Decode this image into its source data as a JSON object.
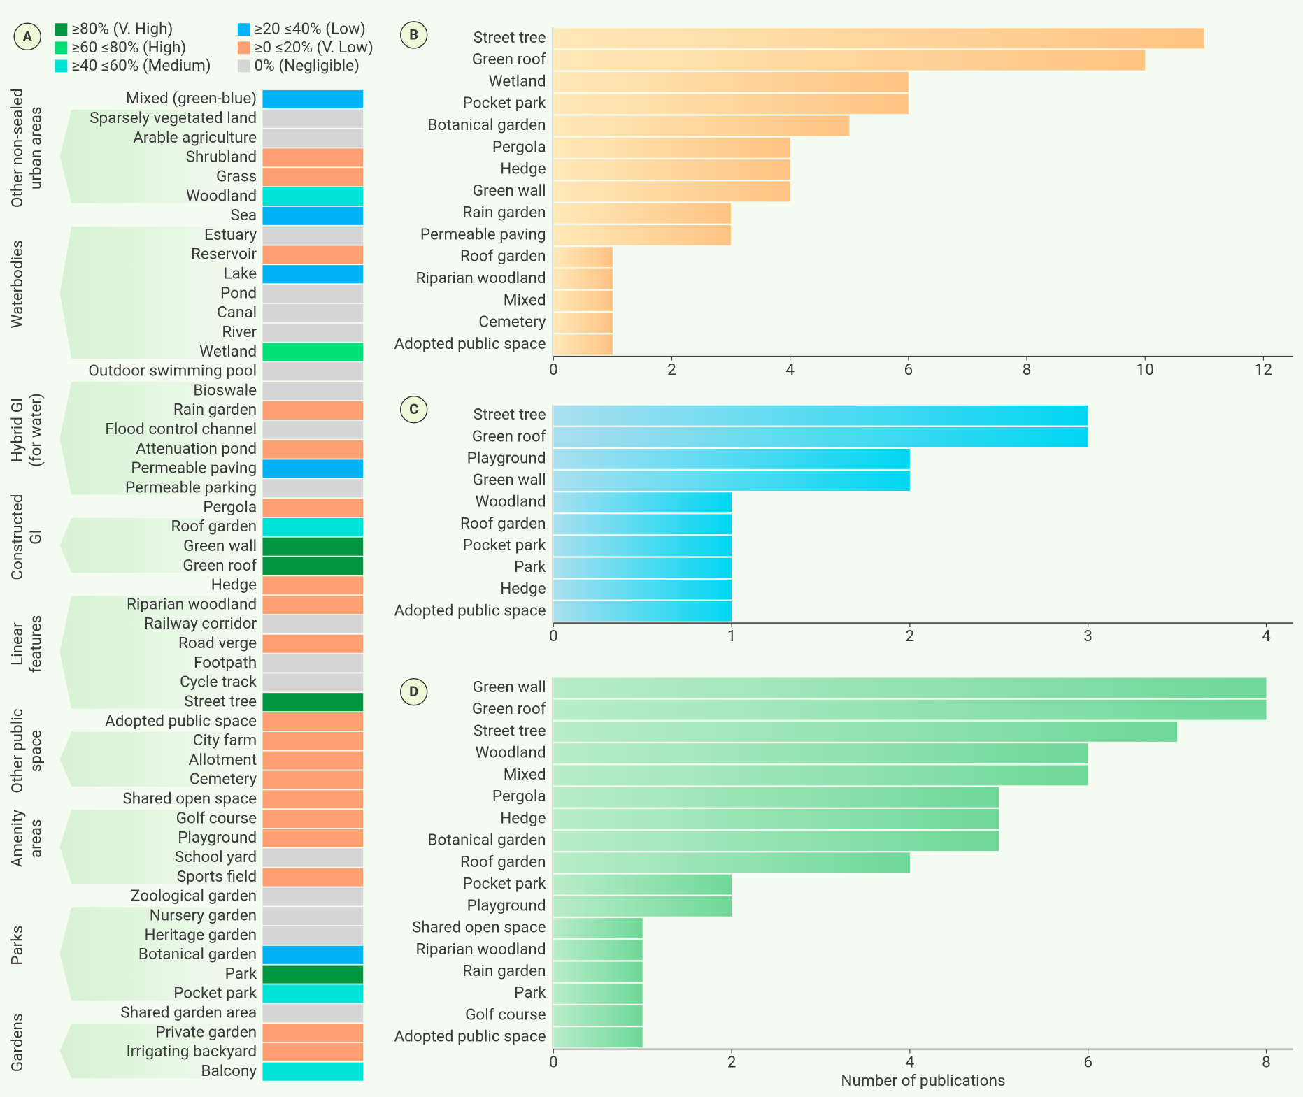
{
  "chart_data": [
    {
      "type": "class-strip",
      "panel": "A",
      "legend": [
        {
          "label": "≥80% (V. High)",
          "color": "#00963f"
        },
        {
          "label": "≥60 ≤80% (High)",
          "color": "#00e076"
        },
        {
          "label": "≥40 ≤60% (Medium)",
          "color": "#00e3d8"
        },
        {
          "label": "≥20 ≤40% (Low)",
          "color": "#00b2f6"
        },
        {
          "label": "≥0 ≤20% (V. Low)",
          "color": "#ffa072"
        },
        {
          "label": "0% (Negligible)",
          "color": "#d6d6d6"
        }
      ],
      "groups": [
        {
          "name": [
            "Other non-sealed",
            "urban areas"
          ],
          "items": [
            {
              "label": "Mixed (green-blue)",
              "class": 3
            },
            {
              "label": "Sparsely vegetated land",
              "class": 5
            },
            {
              "label": "Arable agriculture",
              "class": 5
            },
            {
              "label": "Shrubland",
              "class": 4
            },
            {
              "label": "Grass",
              "class": 4
            },
            {
              "label": "Woodland",
              "class": 2
            }
          ]
        },
        {
          "name": [
            "Waterbodies"
          ],
          "items": [
            {
              "label": "Sea",
              "class": 3
            },
            {
              "label": "Estuary",
              "class": 5
            },
            {
              "label": "Reservoir",
              "class": 4
            },
            {
              "label": "Lake",
              "class": 3
            },
            {
              "label": "Pond",
              "class": 5
            },
            {
              "label": "Canal",
              "class": 5
            },
            {
              "label": "River",
              "class": 5
            },
            {
              "label": "Wetland",
              "class": 1
            }
          ]
        },
        {
          "name": [
            "Hybrid GI",
            "(for water)"
          ],
          "items": [
            {
              "label": "Outdoor swimming pool",
              "class": 5
            },
            {
              "label": "Bioswale",
              "class": 5
            },
            {
              "label": "Rain garden",
              "class": 4
            },
            {
              "label": "Flood control channel",
              "class": 5
            },
            {
              "label": "Attenuation pond",
              "class": 4
            },
            {
              "label": "Permeable paving",
              "class": 3
            },
            {
              "label": "Permeable parking",
              "class": 5
            }
          ]
        },
        {
          "name": [
            "Constructed",
            "GI"
          ],
          "items": [
            {
              "label": "Pergola",
              "class": 4
            },
            {
              "label": "Roof garden",
              "class": 2
            },
            {
              "label": "Green wall",
              "class": 0
            },
            {
              "label": "Green roof",
              "class": 0
            }
          ]
        },
        {
          "name": [
            "Linear",
            "features"
          ],
          "items": [
            {
              "label": "Hedge",
              "class": 4
            },
            {
              "label": "Riparian woodland",
              "class": 4
            },
            {
              "label": "Railway corridor",
              "class": 5
            },
            {
              "label": "Road verge",
              "class": 4
            },
            {
              "label": "Footpath",
              "class": 5
            },
            {
              "label": "Cycle track",
              "class": 5
            },
            {
              "label": "Street tree",
              "class": 0
            }
          ]
        },
        {
          "name": [
            "Other public",
            "space"
          ],
          "items": [
            {
              "label": "Adopted public space",
              "class": 4
            },
            {
              "label": "City farm",
              "class": 4
            },
            {
              "label": "Allotment",
              "class": 4
            },
            {
              "label": "Cemetery",
              "class": 4
            }
          ]
        },
        {
          "name": [
            "Amenity",
            "areas"
          ],
          "items": [
            {
              "label": "Shared open space",
              "class": 4
            },
            {
              "label": "Golf course",
              "class": 4
            },
            {
              "label": "Playground",
              "class": 4
            },
            {
              "label": "School yard",
              "class": 5
            },
            {
              "label": "Sports field",
              "class": 4
            }
          ]
        },
        {
          "name": [
            "Parks"
          ],
          "items": [
            {
              "label": "Zoological garden",
              "class": 5
            },
            {
              "label": "Nursery garden",
              "class": 5
            },
            {
              "label": "Heritage garden",
              "class": 5
            },
            {
              "label": "Botanical garden",
              "class": 3
            },
            {
              "label": "Park",
              "class": 0
            },
            {
              "label": "Pocket park",
              "class": 2
            }
          ]
        },
        {
          "name": [
            "Gardens"
          ],
          "items": [
            {
              "label": "Shared garden area",
              "class": 5
            },
            {
              "label": "Private garden",
              "class": 4
            },
            {
              "label": "Irrigating backyard",
              "class": 4
            },
            {
              "label": "Balcony",
              "class": 2
            }
          ]
        }
      ]
    },
    {
      "type": "bar",
      "panel": "B",
      "orientation": "horizontal",
      "gradient": [
        "#ffe9b8",
        "#ffc382"
      ],
      "categories": [
        "Street tree",
        "Green roof",
        "Wetland",
        "Pocket park",
        "Botanical garden",
        "Pergola",
        "Hedge",
        "Green wall",
        "Rain garden",
        "Permeable paving",
        "Roof garden",
        "Riparian woodland",
        "Mixed",
        "Cemetery",
        "Adopted public space"
      ],
      "values": [
        11,
        10,
        6,
        6,
        5,
        4,
        4,
        4,
        3,
        3,
        1,
        1,
        1,
        1,
        1
      ],
      "xlim": [
        0,
        12.5
      ],
      "xticks": [
        0,
        2,
        4,
        6,
        8,
        10,
        12
      ]
    },
    {
      "type": "bar",
      "panel": "C",
      "orientation": "horizontal",
      "gradient": [
        "#a8dff0",
        "#00d6f2"
      ],
      "categories": [
        "Street tree",
        "Green roof",
        "Playground",
        "Green wall",
        "Woodland",
        "Roof garden",
        "Pocket park",
        "Park",
        "Hedge",
        "Adopted public space"
      ],
      "values": [
        3,
        3,
        2,
        2,
        1,
        1,
        1,
        1,
        1,
        1
      ],
      "xlim": [
        0,
        4.15
      ],
      "xticks": [
        0,
        1,
        2,
        3,
        4
      ]
    },
    {
      "type": "bar",
      "panel": "D",
      "orientation": "horizontal",
      "gradient": [
        "#b8edc8",
        "#6fd898"
      ],
      "categories": [
        "Green wall",
        "Green roof",
        "Street tree",
        "Woodland",
        "Mixed",
        "Pergola",
        "Hedge",
        "Botanical garden",
        "Roof garden",
        "Pocket park",
        "Playground",
        "Shared open space",
        "Riparian woodland",
        "Rain garden",
        "Park",
        "Golf course",
        "Adopted public space"
      ],
      "values": [
        8,
        8,
        7,
        6,
        6,
        5,
        5,
        5,
        4,
        2,
        2,
        1,
        1,
        1,
        1,
        1,
        1
      ],
      "xlim": [
        0,
        8.3
      ],
      "xticks": [
        0,
        2,
        4,
        6,
        8
      ],
      "xlabel": "Number of publications"
    }
  ]
}
